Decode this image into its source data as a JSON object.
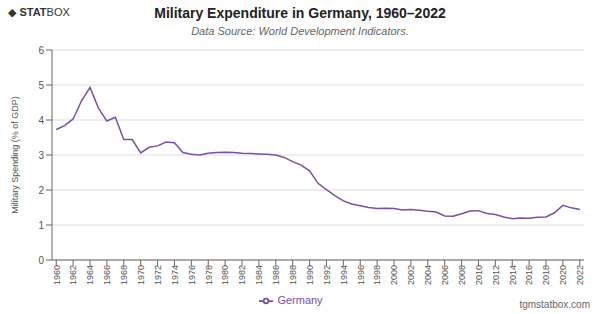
{
  "chart_data": {
    "type": "line",
    "title": "Military Expenditure in Germany, 1960–2022",
    "subtitle": "Data Source: World Development Indicators.",
    "y_label": "Military Spending (% of GDP)",
    "annotations": [
      "◆",
      "STAT",
      "BOX",
      "tgmstatbox.com"
    ],
    "x": [
      1960,
      1961,
      1962,
      1963,
      1964,
      1965,
      1966,
      1967,
      1968,
      1969,
      1970,
      1971,
      1972,
      1973,
      1974,
      1975,
      1976,
      1977,
      1978,
      1979,
      1980,
      1981,
      1982,
      1983,
      1984,
      1985,
      1986,
      1987,
      1988,
      1989,
      1990,
      1991,
      1992,
      1993,
      1994,
      1995,
      1996,
      1997,
      1998,
      1999,
      2000,
      2001,
      2002,
      2003,
      2004,
      2005,
      2006,
      2007,
      2008,
      2009,
      2010,
      2011,
      2012,
      2013,
      2014,
      2015,
      2016,
      2017,
      2018,
      2019,
      2020,
      2021,
      2022
    ],
    "series": [
      {
        "name": "Germany",
        "color": "#7b4fa6",
        "values": [
          3.73,
          3.84,
          4.03,
          4.55,
          4.93,
          4.34,
          3.97,
          4.08,
          3.44,
          3.44,
          3.06,
          3.22,
          3.26,
          3.37,
          3.35,
          3.07,
          3.02,
          3.0,
          3.05,
          3.07,
          3.08,
          3.07,
          3.05,
          3.04,
          3.03,
          3.02,
          3.0,
          2.93,
          2.81,
          2.71,
          2.55,
          2.19,
          2.01,
          1.84,
          1.69,
          1.6,
          1.55,
          1.5,
          1.47,
          1.48,
          1.47,
          1.43,
          1.44,
          1.42,
          1.39,
          1.37,
          1.26,
          1.25,
          1.32,
          1.4,
          1.41,
          1.33,
          1.3,
          1.23,
          1.18,
          1.2,
          1.19,
          1.22,
          1.23,
          1.35,
          1.56,
          1.49,
          1.44
        ]
      }
    ],
    "xlim": [
      1959.5,
      2022.5
    ],
    "xticks": [
      1960,
      1962,
      1964,
      1966,
      1968,
      1970,
      1972,
      1974,
      1976,
      1978,
      1980,
      1982,
      1984,
      1986,
      1988,
      1990,
      1992,
      1994,
      1996,
      1998,
      2000,
      2002,
      2004,
      2006,
      2008,
      2010,
      2012,
      2014,
      2016,
      2018,
      2020,
      2022
    ],
    "ylim": [
      0,
      6
    ],
    "yticks": [
      0,
      1,
      2,
      3,
      4,
      5,
      6
    ],
    "grid": true,
    "legend": "bottom"
  }
}
